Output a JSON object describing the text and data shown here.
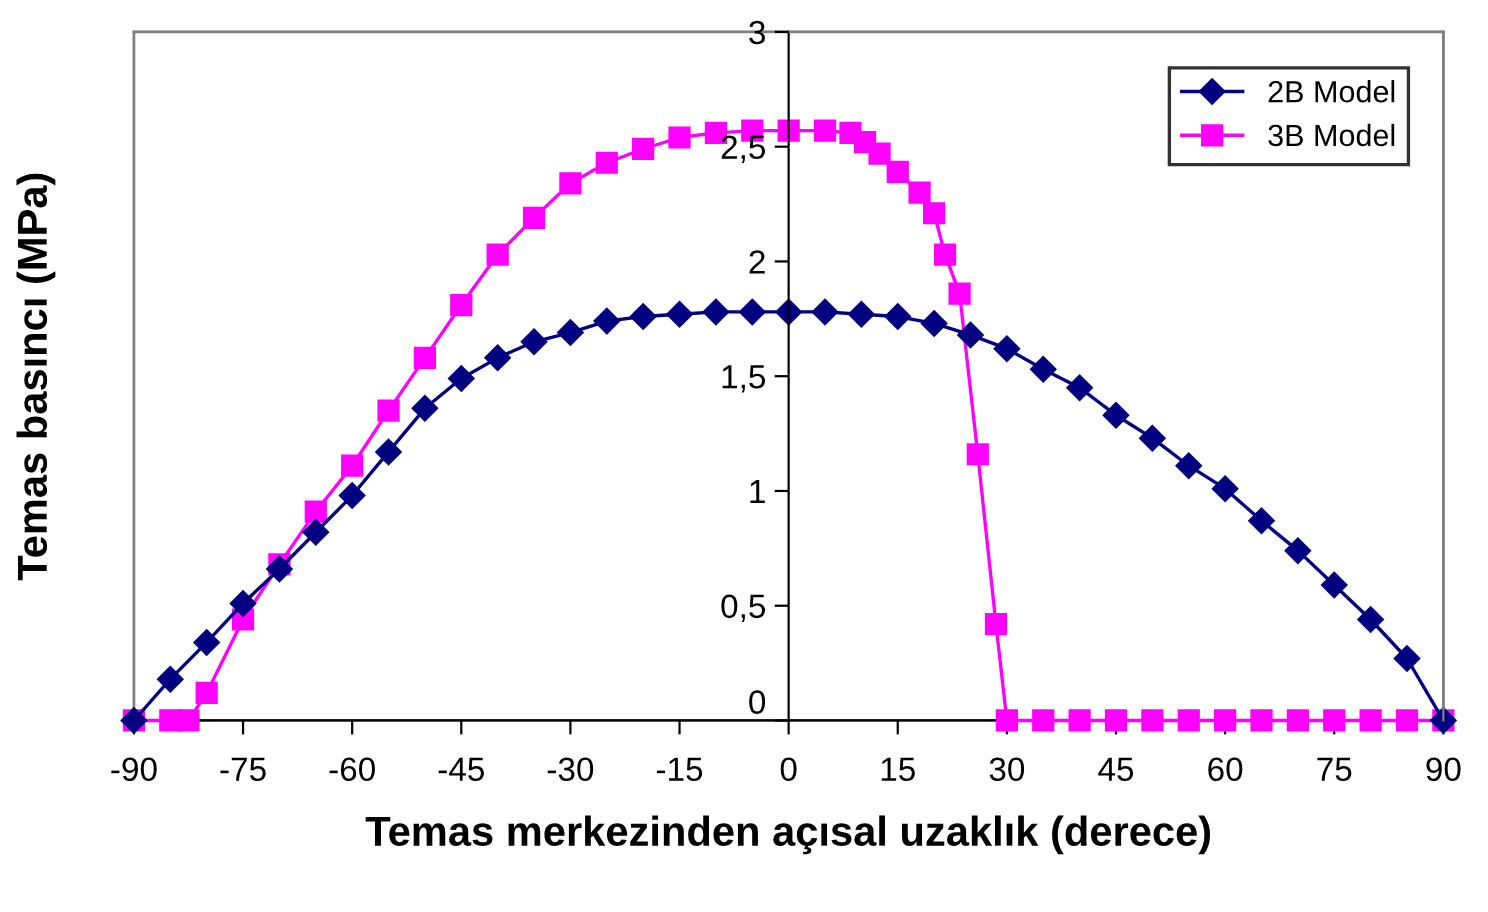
{
  "chart_data": {
    "type": "line",
    "xlabel": "Temas merkezinden açısal uzaklık (derece)",
    "ylabel": "Temas basıncı (MPa)",
    "xlim": [
      -90,
      90
    ],
    "xticks": [
      -90,
      -75,
      -60,
      -45,
      -30,
      -15,
      0,
      15,
      30,
      45,
      60,
      75,
      90
    ],
    "ylim": [
      0,
      3
    ],
    "yticks": [
      0,
      {
        "value": 0.5,
        "label": "0,5"
      },
      1,
      {
        "value": 1.5,
        "label": "1,5"
      },
      2,
      {
        "value": 2.5,
        "label": "2,5"
      },
      3
    ],
    "grid": false,
    "legend": "top right",
    "line_style": "solid",
    "series": [
      {
        "name": "2B Model",
        "color": "#000080",
        "marker": "diamond",
        "x": [
          -90,
          -85,
          -80,
          -75,
          -70,
          -65,
          -60,
          -55,
          -50,
          -45,
          -40,
          -35,
          -30,
          -25,
          -20,
          -15,
          -10,
          -5,
          0,
          5,
          10,
          15,
          20,
          25,
          30,
          35,
          40,
          45,
          50,
          55,
          60,
          65,
          70,
          75,
          80,
          85,
          90
        ],
        "values": [
          0,
          0.18,
          0.34,
          0.51,
          0.66,
          0.82,
          0.98,
          1.17,
          1.36,
          1.49,
          1.58,
          1.65,
          1.69,
          1.74,
          1.76,
          1.77,
          1.78,
          1.78,
          1.78,
          1.78,
          1.77,
          1.76,
          1.73,
          1.68,
          1.62,
          1.53,
          1.45,
          1.33,
          1.23,
          1.11,
          1.01,
          0.87,
          0.74,
          0.59,
          0.44,
          0.27,
          0
        ]
      },
      {
        "name": "3B Model",
        "color": "#ff00ff",
        "marker": "square",
        "x": [
          -90,
          -85,
          -82.5,
          -80,
          -75,
          -70,
          -65,
          -60,
          -55,
          -50,
          -45,
          -40,
          -35,
          -30,
          -25,
          -20,
          -15,
          -10,
          -5,
          0,
          5,
          8.5,
          10.5,
          12.5,
          15,
          18,
          20,
          21.5,
          23.5,
          26,
          28.5,
          30,
          35,
          40,
          45,
          50,
          55,
          60,
          65,
          70,
          75,
          80,
          85,
          90
        ],
        "values": [
          0,
          0,
          0,
          0.12,
          0.44,
          0.68,
          0.91,
          1.11,
          1.35,
          1.58,
          1.81,
          2.03,
          2.19,
          2.34,
          2.43,
          2.49,
          2.54,
          2.56,
          2.57,
          2.57,
          2.57,
          2.56,
          2.52,
          2.47,
          2.39,
          2.3,
          2.21,
          2.03,
          1.86,
          1.16,
          0.42,
          0,
          0,
          0,
          0,
          0,
          0,
          0,
          0,
          0,
          0,
          0,
          0,
          0
        ]
      }
    ]
  }
}
